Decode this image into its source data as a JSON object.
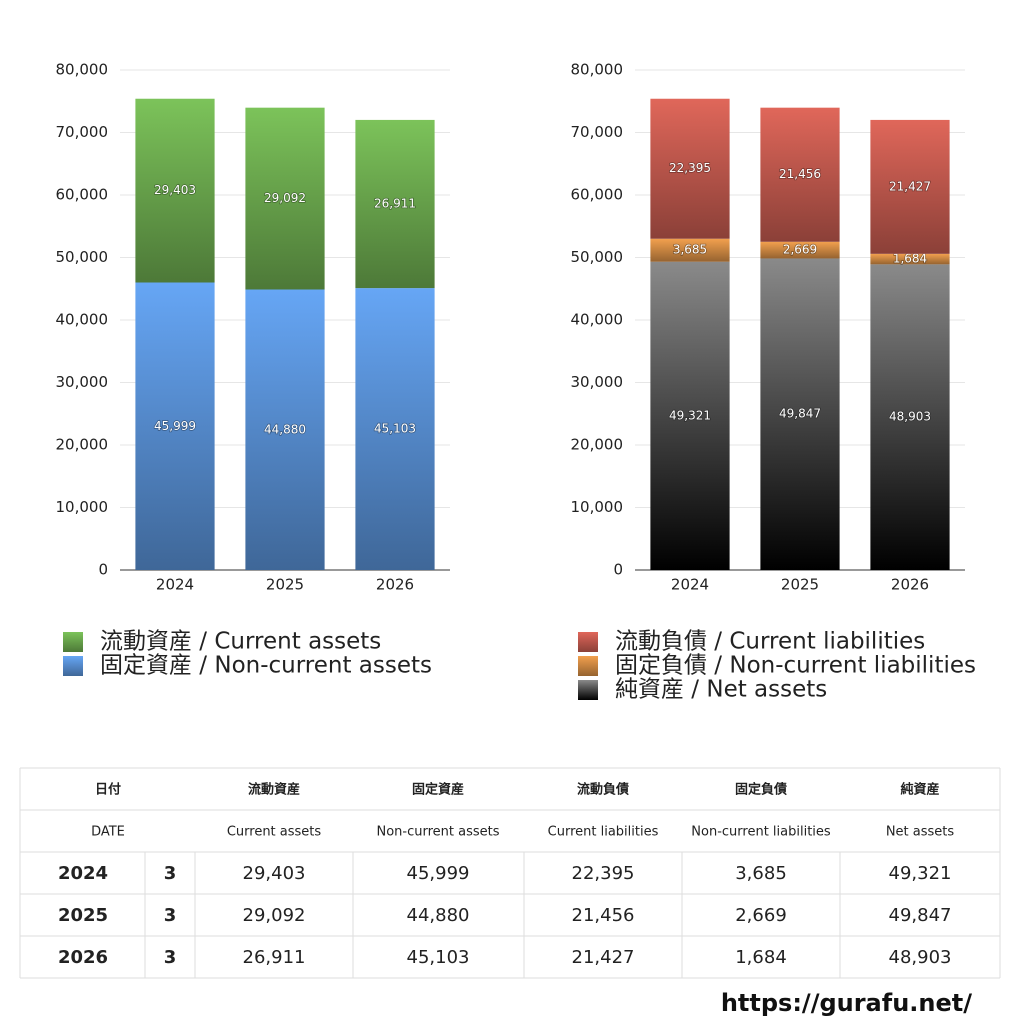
{
  "chart_data": [
    {
      "type": "stacked-bar",
      "categories": [
        "2024",
        "2025",
        "2026"
      ],
      "ylim": [
        0,
        80000
      ],
      "yticks": [
        0,
        {
          "value": 10000,
          "label": "10,000"
        },
        {
          "value": 20000,
          "label": "20,000"
        },
        {
          "value": 30000,
          "label": "30,000"
        },
        {
          "value": 40000,
          "label": "40,000"
        },
        {
          "value": 50000,
          "label": "50,000"
        },
        {
          "value": 60000,
          "label": "60,000"
        },
        {
          "value": 70000,
          "label": "70,000"
        },
        {
          "value": 80000,
          "label": "80,000"
        }
      ],
      "grid": true,
      "series": [
        {
          "name": "流動資産 / Current assets",
          "color": "#7cc35a",
          "values": [
            29403,
            29092,
            26911
          ],
          "value_labels": [
            "29,403",
            "29,092",
            "26,911"
          ]
        },
        {
          "name": "固定資産 / Non-current assets",
          "color": "#66a6f5",
          "values": [
            45999,
            44880,
            45103
          ],
          "value_labels": [
            "45,999",
            "44,880",
            "45,103"
          ]
        }
      ]
    },
    {
      "type": "stacked-bar",
      "categories": [
        "2024",
        "2025",
        "2026"
      ],
      "ylim": [
        0,
        80000
      ],
      "yticks": [
        0,
        {
          "value": 10000,
          "label": "10,000"
        },
        {
          "value": 20000,
          "label": "20,000"
        },
        {
          "value": 30000,
          "label": "30,000"
        },
        {
          "value": 40000,
          "label": "40,000"
        },
        {
          "value": 50000,
          "label": "50,000"
        },
        {
          "value": 60000,
          "label": "60,000"
        },
        {
          "value": 70000,
          "label": "70,000"
        },
        {
          "value": 80000,
          "label": "80,000"
        }
      ],
      "grid": true,
      "series": [
        {
          "name": "流動負債 / Current liabilities",
          "color": "#e0675a",
          "values": [
            22395,
            21456,
            21427
          ],
          "value_labels": [
            "22,395",
            "21,456",
            "21,427"
          ]
        },
        {
          "name": "固定負債 / Non-current liabilities",
          "color": "#f2a04e",
          "values": [
            3685,
            2669,
            1684
          ],
          "value_labels": [
            "3,685",
            "2,669",
            "1,684"
          ]
        },
        {
          "name": "純資産 / Net assets",
          "color": "#8a8a8a",
          "values": [
            49321,
            49847,
            48903
          ],
          "value_labels": [
            "49,321",
            "49,847",
            "48,903"
          ]
        }
      ]
    }
  ],
  "table": {
    "header": [
      "日付",
      "流動資産",
      "固定資産",
      "流動負債",
      "固定負債",
      "純資産"
    ],
    "subheader": [
      "DATE",
      "Current assets",
      "Non-current assets",
      "Current liabilities",
      "Non-current liabilities",
      "Net assets"
    ],
    "rows": [
      [
        "2024",
        "3",
        "29,403",
        "45,999",
        "22,395",
        "3,685",
        "49,321"
      ],
      [
        "2025",
        "3",
        "29,092",
        "44,880",
        "21,456",
        "2,669",
        "49,847"
      ],
      [
        "2026",
        "3",
        "26,911",
        "45,103",
        "21,427",
        "1,684",
        "48,903"
      ]
    ]
  },
  "footer": "https://gurafu.net/"
}
